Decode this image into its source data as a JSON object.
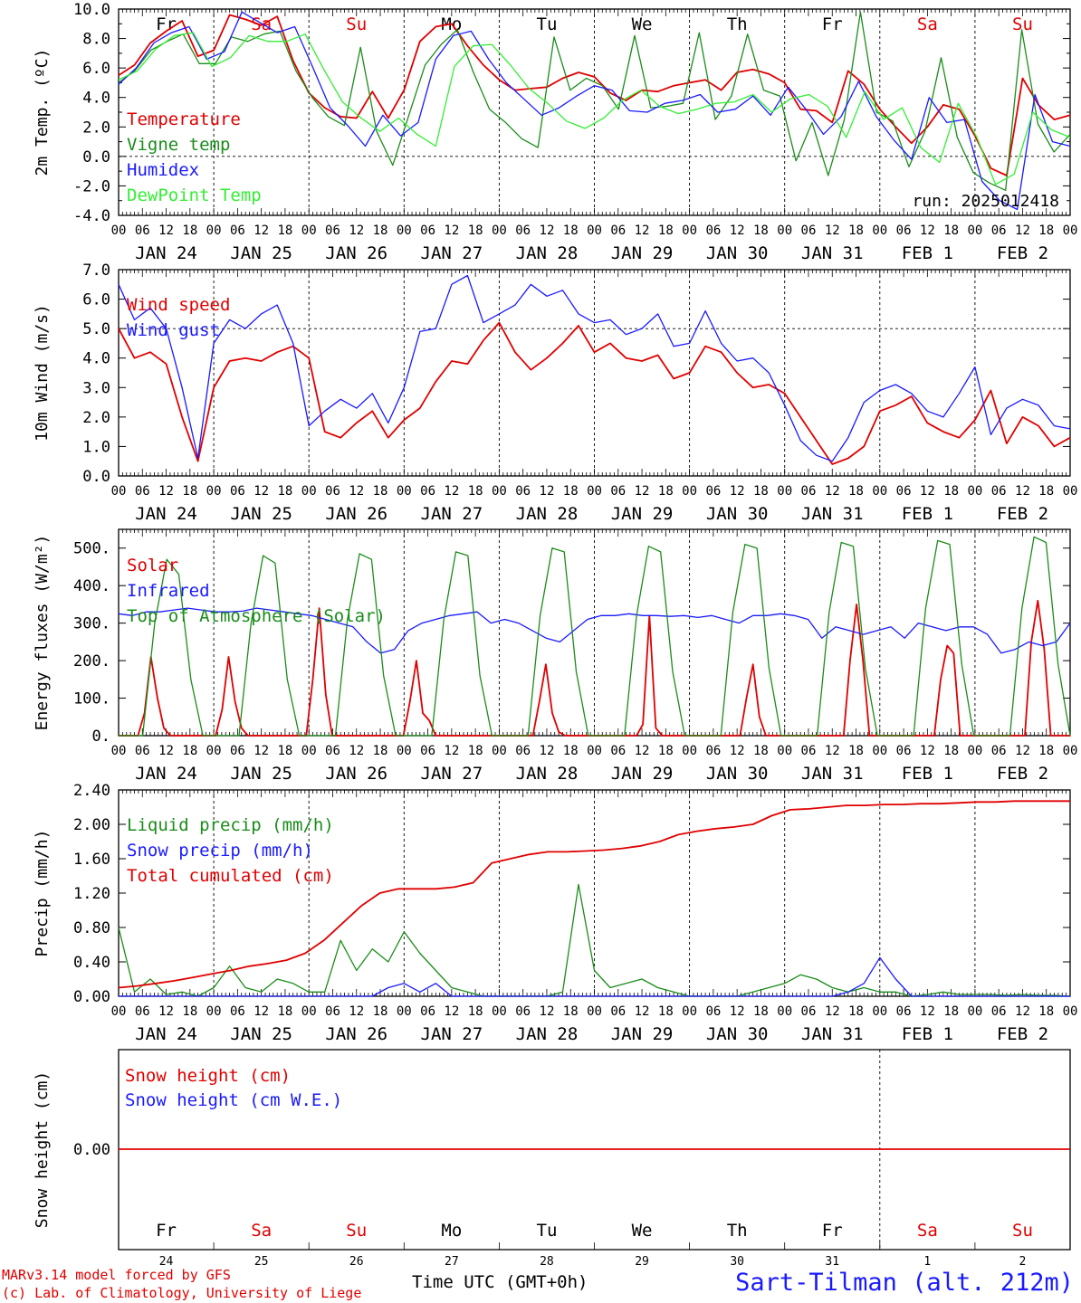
{
  "days": [
    "JAN 24",
    "JAN 25",
    "JAN 26",
    "JAN 27",
    "JAN 28",
    "JAN 29",
    "JAN 30",
    "JAN 31",
    "FEB  1",
    "FEB  2"
  ],
  "weekdays": [
    "Fr",
    "Sa",
    "Su",
    "Mo",
    "Tu",
    "We",
    "Th",
    "Fr",
    "Sa",
    "Su"
  ],
  "weekday_colors": [
    "#000000",
    "#e00000",
    "#e00000",
    "#000000",
    "#000000",
    "#000000",
    "#000000",
    "#000000",
    "#e00000",
    "#e00000"
  ],
  "day_numbers": [
    "24",
    "25",
    "26",
    "27",
    "28",
    "29",
    "30",
    "31",
    "1",
    "2"
  ],
  "hour_labels": [
    "00",
    "06",
    "12",
    "18"
  ],
  "colors": {
    "red": "#e00000",
    "green": "#1a8c1a",
    "blue": "#1a1aff",
    "lightgreen": "#33ee33"
  },
  "footer": {
    "credit1": "MARv3.14 model forced by GFS",
    "credit2": "(c) Lab. of Climatology, University of Liege",
    "time_label": "Time UTC (GMT+0h)",
    "station": "Sart-Tilman (alt. 212m)"
  },
  "chart_data": [
    {
      "type": "line",
      "ylabel": "2m Temp. (ºC)",
      "ylim": [
        -4,
        10
      ],
      "yticks": [
        "10.0",
        "8.0",
        "6.0",
        "4.0",
        "2.0",
        "0.0",
        "-2.0",
        "-4.0"
      ],
      "ytick_values": [
        10,
        8,
        6,
        4,
        2,
        0,
        -2,
        -4
      ],
      "ref_line": 0,
      "annotation": "run: 2025012418",
      "x_unit": "hours since JAN 24 00 UTC, 3-hourly",
      "series": [
        {
          "name": "Temperature",
          "color": "red",
          "values": [
            5.5,
            6.2,
            7.7,
            8.5,
            9.2,
            6.8,
            7.2,
            9.6,
            9.3,
            8.9,
            9.5,
            6.5,
            4.3,
            3.3,
            2.7,
            2.6,
            4.4,
            2.6,
            4.5,
            7.8,
            8.8,
            9.0,
            7.5,
            6.2,
            5.2,
            4.5,
            4.6,
            4.7,
            5.3,
            5.7,
            5.4,
            4.3,
            3.8,
            4.5,
            4.4,
            4.8,
            5.0,
            5.2,
            4.5,
            5.7,
            5.9,
            5.6,
            5.0,
            3.2,
            3.1,
            2.3,
            5.8,
            4.9,
            3.2,
            2.0,
            0.9,
            2.0,
            3.5,
            3.2,
            1.4,
            -0.8,
            -1.3,
            5.3,
            3.5,
            2.5,
            2.8
          ]
        },
        {
          "name": "Vigne temp",
          "color": "green",
          "values": [
            5.0,
            5.8,
            7.2,
            7.8,
            8.3,
            6.3,
            6.3,
            8.1,
            7.8,
            8.3,
            8.5,
            5.8,
            4.0,
            2.7,
            2.1,
            7.4,
            1.7,
            -0.6,
            2.8,
            6.2,
            7.6,
            8.6,
            5.7,
            3.2,
            2.3,
            1.2,
            0.6,
            8.1,
            4.5,
            5.3,
            4.8,
            3.2,
            8.2,
            3.3,
            3.4,
            3.6,
            8.4,
            2.5,
            4.1,
            8.3,
            4.5,
            4.1,
            -0.3,
            2.3,
            -1.3,
            2.5,
            9.8,
            3.0,
            2.4,
            -0.7,
            1.7,
            6.7,
            1.3,
            -1.1,
            -1.8,
            -2.3,
            8.6,
            2.2,
            0.3,
            1.5
          ]
        },
        {
          "name": "Humidex",
          "color": "blue",
          "values": [
            4.9,
            6.0,
            7.7,
            8.4,
            8.8,
            6.6,
            7.1,
            9.8,
            9.1,
            8.4,
            8.8,
            6.1,
            3.3,
            2.1,
            0.7,
            2.8,
            1.4,
            2.3,
            6.6,
            8.2,
            8.5,
            6.6,
            5.0,
            3.9,
            2.8,
            3.3,
            4.1,
            4.8,
            4.5,
            3.1,
            3.0,
            3.6,
            3.8,
            4.2,
            3.0,
            3.2,
            4.1,
            2.8,
            4.7,
            3.2,
            1.5,
            2.7,
            5.1,
            2.7,
            1.1,
            -0.2,
            4.0,
            2.3,
            2.5,
            -1.7,
            -3.0,
            -3.6,
            4.2,
            1.0,
            0.7
          ]
        },
        {
          "name": "DewPoint Temp",
          "color": "lightgreen",
          "values": [
            5.2,
            5.8,
            7.3,
            8.2,
            8.4,
            6.1,
            6.7,
            8.2,
            7.8,
            7.8,
            8.3,
            5.9,
            3.7,
            2.6,
            1.7,
            2.6,
            1.5,
            0.7,
            6.1,
            7.5,
            7.6,
            6.2,
            4.6,
            3.6,
            2.4,
            1.9,
            2.6,
            3.8,
            4.5,
            3.4,
            2.9,
            3.2,
            3.6,
            3.7,
            4.2,
            3.0,
            3.9,
            4.2,
            3.4,
            1.3,
            4.4,
            2.5,
            3.3,
            0.6,
            -0.4,
            3.6,
            1.3,
            -1.9,
            -1.2,
            3.0,
            1.8,
            1.3
          ]
        }
      ]
    },
    {
      "type": "line",
      "ylabel": "10m Wind (m/s)",
      "ylim": [
        0,
        7
      ],
      "yticks": [
        "7.0",
        "6.0",
        "5.0",
        "4.0",
        "3.0",
        "2.0",
        "1.0",
        "0.0"
      ],
      "ytick_values": [
        7,
        6,
        5,
        4,
        3,
        2,
        1,
        0
      ],
      "ref_line": 5,
      "x_unit": "hours since JAN 24 00 UTC, 3-hourly",
      "series": [
        {
          "name": "Wind speed",
          "color": "red",
          "values": [
            5.0,
            4.0,
            4.2,
            3.8,
            2.0,
            0.5,
            3.0,
            3.9,
            4.0,
            3.9,
            4.2,
            4.4,
            4.0,
            1.5,
            1.3,
            1.8,
            2.2,
            1.3,
            1.9,
            2.3,
            3.2,
            3.9,
            3.8,
            4.6,
            5.2,
            4.2,
            3.6,
            4.0,
            4.5,
            5.1,
            4.2,
            4.5,
            4.0,
            3.9,
            4.1,
            3.3,
            3.5,
            4.4,
            4.2,
            3.5,
            3.0,
            3.1,
            2.8,
            2.0,
            1.2,
            0.4,
            0.6,
            1.0,
            2.2,
            2.4,
            2.7,
            1.8,
            1.5,
            1.3,
            1.9,
            2.9,
            1.1,
            2.0,
            1.7,
            1.0,
            1.3
          ]
        },
        {
          "name": "Wind gust",
          "color": "blue",
          "values": [
            6.5,
            5.3,
            5.7,
            5.0,
            3.0,
            0.6,
            4.5,
            5.3,
            5.0,
            5.5,
            5.8,
            4.5,
            1.7,
            2.2,
            2.6,
            2.3,
            2.8,
            1.8,
            3.0,
            4.9,
            5.0,
            6.5,
            6.8,
            5.2,
            5.5,
            5.8,
            6.5,
            6.1,
            6.3,
            5.5,
            5.2,
            5.3,
            4.8,
            5.0,
            5.5,
            4.4,
            4.5,
            5.6,
            4.5,
            3.9,
            4.0,
            3.5,
            2.4,
            1.2,
            0.7,
            0.5,
            1.3,
            2.5,
            2.9,
            3.1,
            2.8,
            2.2,
            2.0,
            2.8,
            3.7,
            1.4,
            2.3,
            2.6,
            2.4,
            1.7,
            1.6
          ]
        }
      ]
    },
    {
      "type": "line",
      "ylabel": "Energy fluxes (W/m²)",
      "ylim": [
        0,
        550
      ],
      "yticks": [
        "500.",
        "400.",
        "300.",
        "200.",
        "100.",
        "0."
      ],
      "ytick_values": [
        500,
        400,
        300,
        200,
        100,
        0
      ],
      "x_unit": "hours since JAN 24 00 UTC, 3-hourly",
      "series": [
        {
          "name": "Solar",
          "color": "red",
          "values": [
            0,
            0,
            0,
            0,
            60,
            210,
            100,
            20,
            0,
            0,
            0,
            0,
            0,
            0,
            0,
            0,
            70,
            210,
            90,
            20,
            0,
            0,
            0,
            0,
            0,
            0,
            0,
            0,
            0,
            0,
            150,
            340,
            110,
            0,
            0,
            0,
            0,
            0,
            0,
            0,
            0,
            0,
            0,
            0,
            0,
            90,
            200,
            60,
            40,
            0,
            0,
            0,
            0,
            0,
            0,
            0,
            0,
            0,
            0,
            0,
            0,
            0,
            0,
            0,
            0,
            90,
            190,
            60,
            10,
            0,
            0,
            0,
            0,
            0,
            0,
            0,
            0,
            0,
            0,
            0,
            0,
            30,
            320,
            20,
            0,
            0,
            0,
            0,
            0,
            0,
            0,
            0,
            0,
            0,
            0,
            0,
            0,
            100,
            190,
            50,
            0,
            0,
            0,
            0,
            0,
            0,
            0,
            0,
            0,
            0,
            0,
            0,
            0,
            200,
            350,
            200,
            0,
            0,
            0,
            0,
            0,
            0,
            0,
            0,
            0,
            0,
            0,
            150,
            240,
            220,
            0,
            0,
            0,
            0,
            0,
            0,
            0,
            0,
            0,
            0,
            0,
            250,
            360,
            230,
            0,
            0,
            0,
            0
          ]
        },
        {
          "name": "Infrared",
          "color": "blue",
          "values": [
            325,
            320,
            330,
            330,
            335,
            340,
            335,
            330,
            330,
            332,
            340,
            335,
            330,
            325,
            320,
            310,
            300,
            290,
            250,
            220,
            230,
            280,
            300,
            310,
            320,
            325,
            330,
            300,
            310,
            300,
            280,
            260,
            250,
            280,
            310,
            320,
            320,
            325,
            320,
            320,
            318,
            320,
            315,
            320,
            310,
            300,
            320,
            320,
            325,
            320,
            310,
            260,
            290,
            280,
            270,
            280,
            290,
            260,
            300,
            290,
            280,
            290,
            290,
            270,
            220,
            230,
            250,
            240,
            250,
            300
          ]
        },
        {
          "name": "Top of Atmosphere (Solar)",
          "color": "green",
          "values": [
            0,
            0,
            0,
            300,
            470,
            430,
            150,
            0,
            0,
            0,
            0,
            300,
            480,
            460,
            150,
            0,
            0,
            0,
            0,
            310,
            485,
            470,
            160,
            0,
            0,
            0,
            0,
            310,
            490,
            480,
            160,
            0,
            0,
            0,
            0,
            320,
            500,
            490,
            170,
            0,
            0,
            0,
            0,
            320,
            505,
            490,
            170,
            0,
            0,
            0,
            0,
            330,
            510,
            500,
            180,
            0,
            0,
            0,
            0,
            330,
            515,
            505,
            180,
            0,
            0,
            0,
            0,
            340,
            520,
            510,
            190,
            0,
            0,
            0,
            0,
            340,
            530,
            515,
            190,
            0
          ]
        }
      ]
    },
    {
      "type": "line",
      "ylabel": "Precip (mm/h)",
      "ylim": [
        0,
        2.4
      ],
      "yticks": [
        "2.40",
        "2.00",
        "1.60",
        "1.20",
        "0.80",
        "0.40",
        "0.00"
      ],
      "ytick_values": [
        2.4,
        2.0,
        1.6,
        1.2,
        0.8,
        0.4,
        0
      ],
      "x_unit": "hours since JAN 24 00 UTC, 3-hourly",
      "series": [
        {
          "name": "Liquid precip (mm/h)",
          "color": "green",
          "values": [
            0.8,
            0.05,
            0.2,
            0.02,
            0.05,
            0.0,
            0.1,
            0.35,
            0.1,
            0.05,
            0.2,
            0.15,
            0.05,
            0.05,
            0.65,
            0.3,
            0.55,
            0.4,
            0.75,
            0.5,
            0.3,
            0.1,
            0.05,
            0.0,
            0.0,
            0.0,
            0.0,
            0.0,
            0.05,
            1.3,
            0.3,
            0.1,
            0.15,
            0.2,
            0.1,
            0.05,
            0.0,
            0.0,
            0.0,
            0.0,
            0.05,
            0.1,
            0.15,
            0.25,
            0.2,
            0.1,
            0.05,
            0.1,
            0.05,
            0.05,
            0.0,
            0.02,
            0.05,
            0.02,
            0.02,
            0.02,
            0.01,
            0.02,
            0.01,
            0.01,
            0.0
          ]
        },
        {
          "name": "Snow precip (mm/h)",
          "color": "blue",
          "values": [
            0,
            0,
            0,
            0,
            0,
            0,
            0,
            0,
            0,
            0,
            0,
            0,
            0,
            0,
            0,
            0,
            0,
            0.1,
            0.15,
            0.05,
            0.15,
            0,
            0,
            0,
            0,
            0,
            0,
            0,
            0,
            0,
            0,
            0,
            0,
            0,
            0,
            0,
            0,
            0,
            0,
            0,
            0,
            0,
            0,
            0,
            0,
            0,
            0.05,
            0.15,
            0.45,
            0.2,
            0,
            0,
            0,
            0,
            0,
            0,
            0,
            0,
            0,
            0,
            0
          ]
        },
        {
          "name": "Total cumulated (cm)",
          "color": "red",
          "values": [
            0.1,
            0.12,
            0.15,
            0.18,
            0.22,
            0.26,
            0.3,
            0.35,
            0.38,
            0.42,
            0.5,
            0.65,
            0.85,
            1.05,
            1.2,
            1.25,
            1.25,
            1.25,
            1.27,
            1.32,
            1.55,
            1.6,
            1.65,
            1.68,
            1.68,
            1.69,
            1.7,
            1.72,
            1.75,
            1.8,
            1.88,
            1.92,
            1.95,
            1.97,
            2.0,
            2.1,
            2.17,
            2.18,
            2.2,
            2.22,
            2.22,
            2.23,
            2.23,
            2.24,
            2.24,
            2.25,
            2.26,
            2.26,
            2.27,
            2.27,
            2.27,
            2.27
          ]
        }
      ]
    },
    {
      "type": "line",
      "ylabel": "Snow height (cm)",
      "yticks": [
        "0.00"
      ],
      "ytick_values": [
        0
      ],
      "x_unit": "hours since JAN 24 00 UTC, 3-hourly",
      "series": [
        {
          "name": "Snow height (cm)",
          "color": "red",
          "values": [
            0,
            0
          ]
        },
        {
          "name": "Snow height (cm W.E.)",
          "color": "blue",
          "values": []
        }
      ]
    }
  ]
}
